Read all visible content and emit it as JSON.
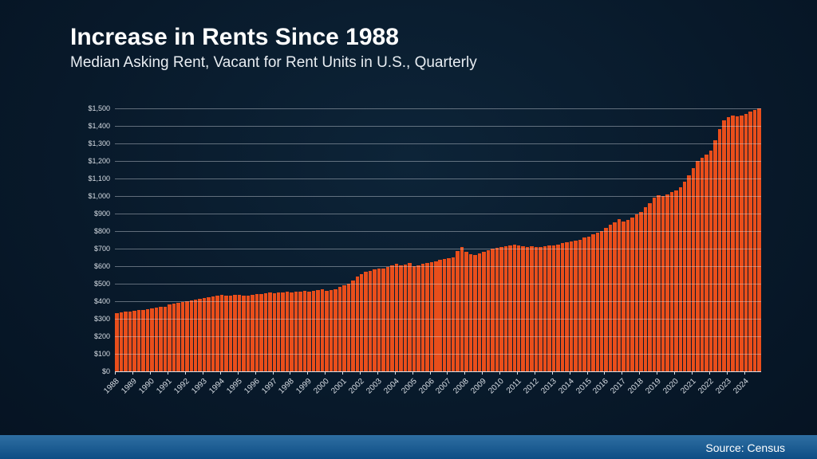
{
  "title": "Increase in Rents Since 1988",
  "subtitle": "Median Asking Rent, Vacant for Rent Units in U.S., Quarterly",
  "source": "Source: Census",
  "chart": {
    "type": "bar",
    "background_color": "transparent",
    "bar_color": "#e94e1b",
    "grid_color": "rgba(220,225,232,0.42)",
    "axis_label_color": "#d8dee5",
    "y_axis": {
      "min": 0,
      "max": 1500,
      "tick_step": 100,
      "tick_prefix": "$",
      "tick_format_thousands": true,
      "label_fontsize": 9
    },
    "x_axis": {
      "first_year": 1988,
      "last_year": 2024,
      "label_rotation_deg": -45,
      "label_fontsize": 10
    },
    "bar_gap_ratio": 0.18,
    "values": [
      330,
      335,
      340,
      343,
      345,
      348,
      352,
      356,
      358,
      362,
      366,
      370,
      380,
      385,
      390,
      396,
      400,
      405,
      410,
      415,
      418,
      422,
      426,
      432,
      435,
      430,
      434,
      438,
      436,
      432,
      434,
      438,
      440,
      442,
      446,
      448,
      445,
      448,
      452,
      455,
      450,
      453,
      456,
      460,
      455,
      458,
      462,
      468,
      460,
      465,
      470,
      480,
      490,
      500,
      520,
      540,
      555,
      568,
      575,
      580,
      585,
      588,
      595,
      605,
      615,
      605,
      610,
      618,
      600,
      605,
      612,
      620,
      622,
      628,
      635,
      640,
      645,
      650,
      688,
      710,
      680,
      670,
      665,
      675,
      682,
      690,
      700,
      706,
      710,
      715,
      720,
      725,
      720,
      712,
      708,
      712,
      710,
      708,
      712,
      716,
      720,
      725,
      730,
      738,
      740,
      745,
      750,
      762,
      770,
      780,
      790,
      802,
      820,
      835,
      850,
      870,
      855,
      862,
      878,
      895,
      910,
      935,
      960,
      990,
      1005,
      998,
      1010,
      1025,
      1030,
      1050,
      1080,
      1120,
      1160,
      1200,
      1220,
      1235,
      1260,
      1320,
      1380,
      1430,
      1450,
      1460,
      1455,
      1460,
      1470,
      1480,
      1490,
      1500
    ]
  }
}
